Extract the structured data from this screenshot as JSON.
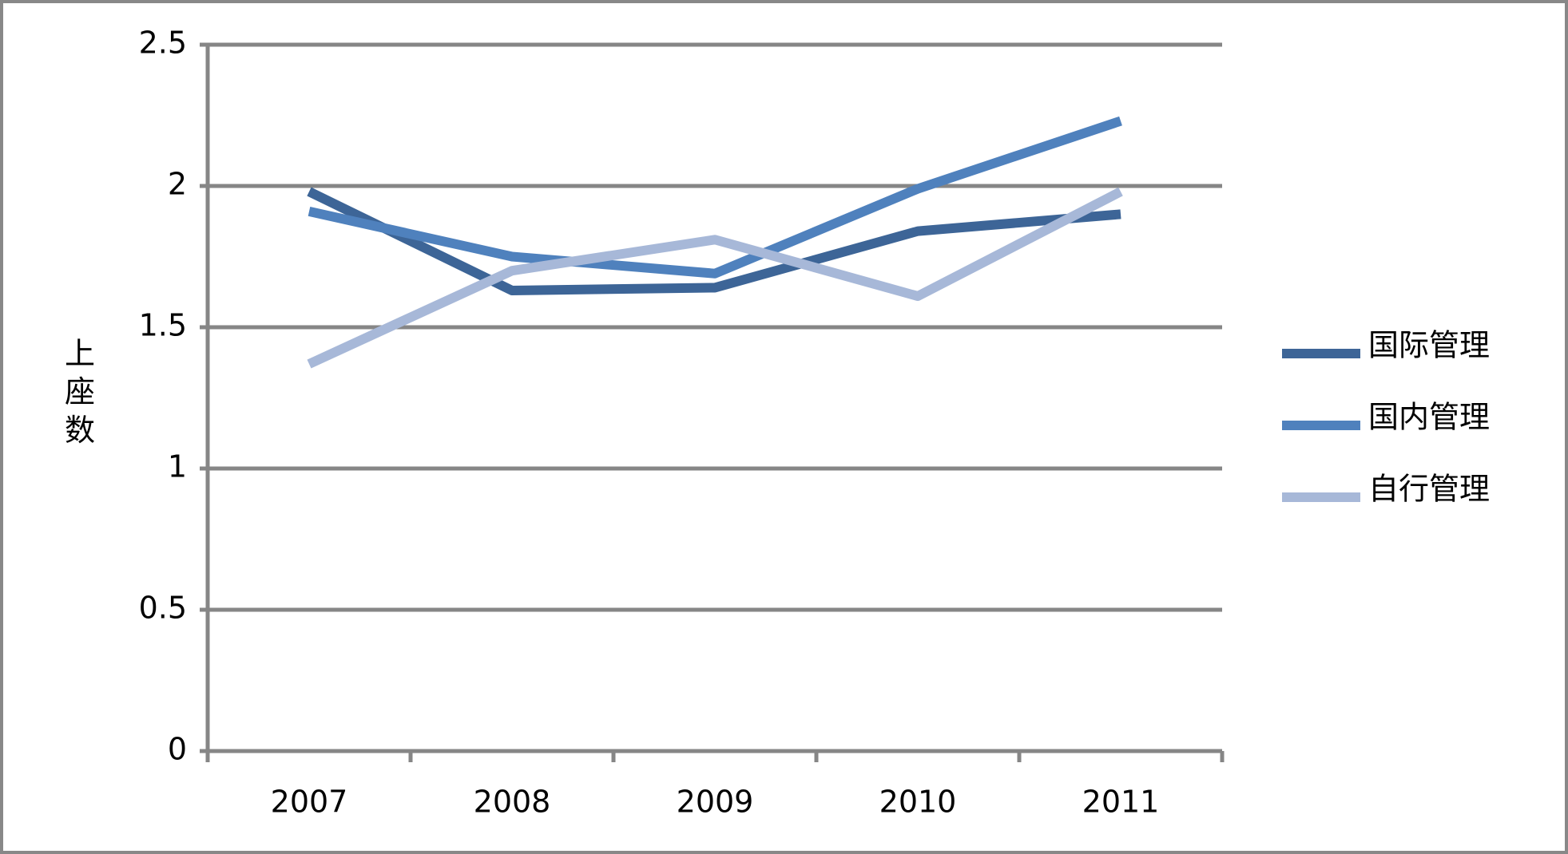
{
  "chart_data": {
    "type": "line",
    "y_label": "上座数",
    "categories": [
      "2007",
      "2008",
      "2009",
      "2010",
      "2011"
    ],
    "series": [
      {
        "name": "国际管理",
        "color": "#3d6597",
        "values": [
          1.98,
          1.63,
          1.64,
          1.84,
          1.9
        ]
      },
      {
        "name": "国内管理",
        "color": "#4f81bd",
        "values": [
          1.91,
          1.75,
          1.69,
          1.99,
          2.23
        ]
      },
      {
        "name": "自行管理",
        "color": "#a7b8d8",
        "values": [
          1.37,
          1.7,
          1.81,
          1.61,
          1.98
        ]
      }
    ],
    "ylim": [
      0,
      2.5
    ],
    "yticks": [
      0,
      0.5,
      1,
      1.5,
      2,
      2.5
    ],
    "grid": true,
    "legend": "right"
  }
}
